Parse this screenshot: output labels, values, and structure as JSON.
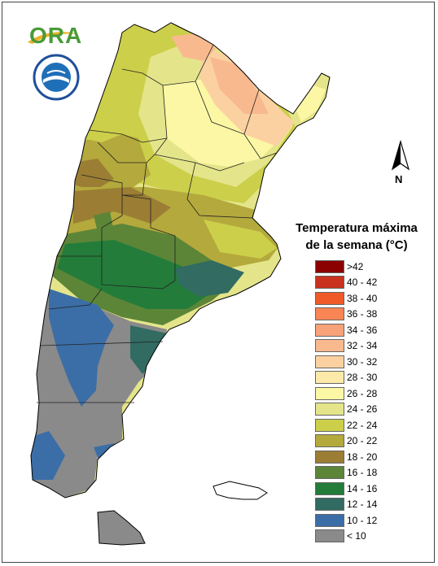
{
  "logo": {
    "text": "ORA"
  },
  "legend": {
    "title_line1": "Temperatura máxima",
    "title_line2": "de la semana (°C)",
    "items": [
      {
        "label": ">42",
        "color": "#8b0000"
      },
      {
        "label": "40 - 42",
        "color": "#c8321e"
      },
      {
        "label": "38 - 40",
        "color": "#ef5a28"
      },
      {
        "label": "36 - 38",
        "color": "#f98555"
      },
      {
        "label": "34 - 36",
        "color": "#f8a27a"
      },
      {
        "label": "32 - 34",
        "color": "#f9b98e"
      },
      {
        "label": "30 - 32",
        "color": "#fbd1a1"
      },
      {
        "label": "28 - 30",
        "color": "#fde9a8"
      },
      {
        "label": "26 - 28",
        "color": "#fbf7a4"
      },
      {
        "label": "24 - 26",
        "color": "#e4e58a"
      },
      {
        "label": "22 - 24",
        "color": "#cccf4a"
      },
      {
        "label": "20 - 22",
        "color": "#b4a93c"
      },
      {
        "label": "18 - 20",
        "color": "#9b7e34"
      },
      {
        "label": "16 - 18",
        "color": "#5c8538"
      },
      {
        "label": "14 - 16",
        "color": "#237c3a"
      },
      {
        "label": "12 - 14",
        "color": "#316b62"
      },
      {
        "label": "10 - 12",
        "color": "#3b6ea7"
      },
      {
        "label": "< 10",
        "color": "#8a8a8a"
      }
    ]
  },
  "compass": {
    "label": "N"
  }
}
